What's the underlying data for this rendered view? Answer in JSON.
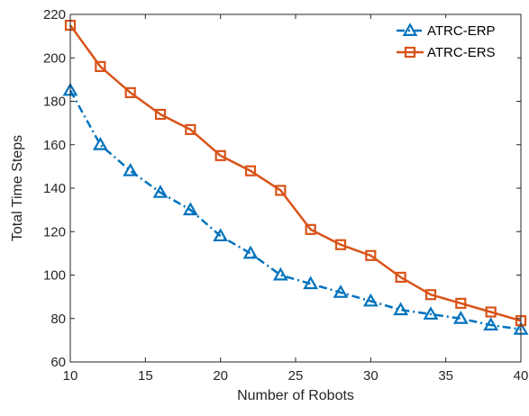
{
  "chart_data": {
    "type": "line",
    "title": "",
    "xlabel": "Number of Robots",
    "ylabel": "Total Time Steps",
    "xlim": [
      10,
      40
    ],
    "ylim": [
      60,
      220
    ],
    "xticks": [
      10,
      15,
      20,
      25,
      30,
      35,
      40
    ],
    "yticks": [
      60,
      80,
      100,
      120,
      140,
      160,
      180,
      200,
      220
    ],
    "x": [
      10,
      12,
      14,
      16,
      18,
      20,
      22,
      24,
      26,
      28,
      30,
      32,
      34,
      36,
      38,
      40
    ],
    "series": [
      {
        "name": "ATRC-ERP",
        "values": [
          185,
          160,
          148,
          138,
          130,
          118,
          110,
          100,
          96,
          92,
          88,
          84,
          82,
          80,
          77,
          75
        ],
        "color": "#0072BD",
        "line_style": "dash-dot",
        "marker": "triangle"
      },
      {
        "name": "ATRC-ERS",
        "values": [
          215,
          196,
          184,
          174,
          167,
          155,
          148,
          139,
          121,
          114,
          109,
          99,
          91,
          87,
          83,
          79
        ],
        "color": "#D95319",
        "line_style": "solid",
        "marker": "square"
      }
    ],
    "grid": false,
    "legend_position": "top-right",
    "box": true
  }
}
